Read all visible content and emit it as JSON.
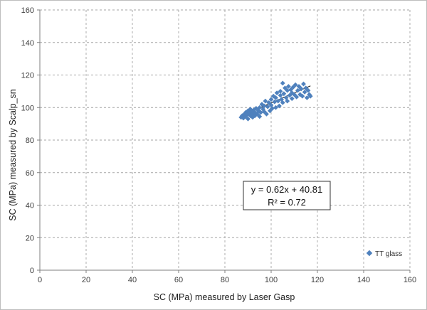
{
  "chart_data": {
    "type": "scatter",
    "title": "",
    "xlabel": "SC (MPa) measured by Laser Gasp",
    "ylabel": "SC (MPa) measured by Scalp_sn",
    "xlim": [
      0,
      160
    ],
    "ylim": [
      0,
      160
    ],
    "x_ticks": [
      0,
      20,
      40,
      60,
      80,
      100,
      120,
      140,
      160
    ],
    "y_ticks": [
      0,
      20,
      40,
      60,
      80,
      100,
      120,
      140,
      160
    ],
    "grid": "dashed",
    "legend": {
      "placement": "bottom-right"
    },
    "series": [
      {
        "name": "TT glass",
        "marker": "diamond",
        "color": "#4f81bd",
        "points": [
          [
            87,
            94
          ],
          [
            87.5,
            95
          ],
          [
            88,
            93.5
          ],
          [
            88.5,
            96
          ],
          [
            89,
            94.5
          ],
          [
            89,
            97
          ],
          [
            89.5,
            95.5
          ],
          [
            90,
            98
          ],
          [
            90,
            93
          ],
          [
            90.5,
            96.5
          ],
          [
            91,
            99
          ],
          [
            91,
            95
          ],
          [
            91.5,
            97.5
          ],
          [
            92,
            94
          ],
          [
            92,
            96
          ],
          [
            92.5,
            98.5
          ],
          [
            93,
            95
          ],
          [
            93,
            97
          ],
          [
            93.5,
            99.5
          ],
          [
            94,
            96
          ],
          [
            94.5,
            98
          ],
          [
            95,
            94.5
          ],
          [
            95,
            100
          ],
          [
            95.5,
            97
          ],
          [
            96,
            102
          ],
          [
            96.5,
            99
          ],
          [
            97,
            97.5
          ],
          [
            97,
            101
          ],
          [
            97.5,
            104
          ],
          [
            98,
            96
          ],
          [
            98.5,
            100.5
          ],
          [
            99,
            103
          ],
          [
            99.5,
            98
          ],
          [
            100,
            105
          ],
          [
            100,
            101.5
          ],
          [
            100.5,
            99.5
          ],
          [
            101,
            107
          ],
          [
            101.5,
            103.5
          ],
          [
            102,
            100
          ],
          [
            102,
            106
          ],
          [
            102.5,
            109
          ],
          [
            103,
            104
          ],
          [
            103.5,
            101
          ],
          [
            104,
            107.5
          ],
          [
            104,
            110
          ],
          [
            104.5,
            105
          ],
          [
            105,
            115
          ],
          [
            105,
            103
          ],
          [
            105.5,
            108.5
          ],
          [
            106,
            112
          ],
          [
            106.5,
            106
          ],
          [
            107,
            110.5
          ],
          [
            107,
            104
          ],
          [
            107.5,
            113
          ],
          [
            108,
            107.5
          ],
          [
            108.5,
            111
          ],
          [
            109,
            105.5
          ],
          [
            109,
            109
          ],
          [
            109.5,
            112.5
          ],
          [
            110,
            108
          ],
          [
            110.5,
            114
          ],
          [
            111,
            106.5
          ],
          [
            111.5,
            110.5
          ],
          [
            112,
            113
          ],
          [
            112.5,
            108
          ],
          [
            113,
            111.5
          ],
          [
            113.5,
            107
          ],
          [
            114,
            114.5
          ],
          [
            114.5,
            109.5
          ],
          [
            115,
            112
          ],
          [
            115.5,
            106
          ],
          [
            116,
            110.5
          ],
          [
            116.5,
            108
          ],
          [
            117,
            107
          ]
        ]
      }
    ],
    "trendline": {
      "type": "linear",
      "slope": 0.62,
      "intercept": 40.81,
      "x_range": [
        87,
        117
      ]
    },
    "annotation": {
      "equation": "y = 0.62x + 40.81",
      "r_squared": "R² = 0.72"
    }
  }
}
